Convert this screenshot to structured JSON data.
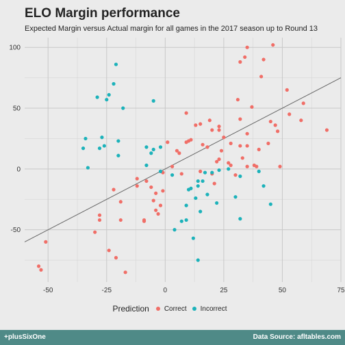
{
  "chart_data": {
    "type": "scatter",
    "title": "ELO Margin performance",
    "subtitle": "Expected Margin versus Actual margin for all games in the 2017 season up to Round 13",
    "xlim": [
      -60,
      75
    ],
    "ylim": [
      -93,
      108
    ],
    "x_ticks": [
      -50,
      -25,
      0,
      25,
      50,
      75
    ],
    "y_ticks": [
      -50,
      0,
      50,
      100
    ],
    "grid": true,
    "legend": {
      "title": "Prediction",
      "placement": "bottom",
      "entries": [
        "Correct",
        "Incorrect"
      ]
    },
    "trend_line": {
      "x": [
        -60,
        75
      ],
      "y": [
        -60,
        75
      ],
      "color": "#666666"
    },
    "series": [
      {
        "name": "Correct",
        "color": "#f06e67",
        "points": [
          [
            -54,
            -80
          ],
          [
            -53,
            -83
          ],
          [
            -51,
            -60
          ],
          [
            -30,
            -52
          ],
          [
            -28,
            -38
          ],
          [
            -28,
            -42
          ],
          [
            -24,
            -67
          ],
          [
            -22,
            -17
          ],
          [
            -21,
            -73
          ],
          [
            -19,
            -27
          ],
          [
            -19,
            -42
          ],
          [
            -17,
            -85
          ],
          [
            -12,
            -14
          ],
          [
            -12,
            -8
          ],
          [
            -9,
            -42
          ],
          [
            -9,
            -43
          ],
          [
            -8,
            -10
          ],
          [
            -6,
            -15
          ],
          [
            -5,
            -26
          ],
          [
            -4,
            -34
          ],
          [
            -4,
            -20
          ],
          [
            -3,
            -37
          ],
          [
            -2,
            -30
          ],
          [
            -1,
            -18
          ],
          [
            -1,
            -3
          ],
          [
            1,
            22
          ],
          [
            3,
            2
          ],
          [
            5,
            15
          ],
          [
            6,
            13
          ],
          [
            7,
            -4
          ],
          [
            9,
            46
          ],
          [
            9,
            22
          ],
          [
            10,
            23
          ],
          [
            11,
            24
          ],
          [
            13,
            36
          ],
          [
            15,
            37
          ],
          [
            15,
            -2
          ],
          [
            16,
            20
          ],
          [
            18,
            18
          ],
          [
            19,
            40
          ],
          [
            20,
            32
          ],
          [
            20,
            -4
          ],
          [
            21,
            -12
          ],
          [
            22,
            6
          ],
          [
            23,
            35
          ],
          [
            23,
            32
          ],
          [
            23,
            8
          ],
          [
            24,
            15
          ],
          [
            25,
            26
          ],
          [
            27,
            5
          ],
          [
            28,
            21
          ],
          [
            28,
            3
          ],
          [
            30,
            -5
          ],
          [
            31,
            57
          ],
          [
            32,
            88
          ],
          [
            32,
            41
          ],
          [
            32,
            19
          ],
          [
            33,
            9
          ],
          [
            34,
            92
          ],
          [
            35,
            100
          ],
          [
            35,
            29
          ],
          [
            35,
            19
          ],
          [
            35,
            2
          ],
          [
            37,
            51
          ],
          [
            38,
            3
          ],
          [
            39,
            2
          ],
          [
            40,
            16
          ],
          [
            41,
            76
          ],
          [
            42,
            90
          ],
          [
            44,
            21
          ],
          [
            45,
            39
          ],
          [
            46,
            102
          ],
          [
            47,
            36
          ],
          [
            48,
            31
          ],
          [
            49,
            2
          ],
          [
            52,
            65
          ],
          [
            53,
            45
          ],
          [
            58,
            40
          ],
          [
            59,
            54
          ],
          [
            69,
            32
          ]
        ]
      },
      {
        "name": "Incorrect",
        "color": "#1cb2ba",
        "points": [
          [
            -35,
            17
          ],
          [
            -34,
            25
          ],
          [
            -33,
            1
          ],
          [
            -29,
            59
          ],
          [
            -28,
            17
          ],
          [
            -27,
            26
          ],
          [
            -26,
            19
          ],
          [
            -25,
            57
          ],
          [
            -24,
            61
          ],
          [
            -22,
            70
          ],
          [
            -21,
            86
          ],
          [
            -20,
            23
          ],
          [
            -20,
            11
          ],
          [
            -18,
            50
          ],
          [
            -8,
            18
          ],
          [
            -8,
            3
          ],
          [
            -6,
            13
          ],
          [
            -5,
            56
          ],
          [
            -5,
            16
          ],
          [
            -2,
            18
          ],
          [
            -2,
            -2
          ],
          [
            3,
            -5
          ],
          [
            4,
            -50
          ],
          [
            7,
            -43
          ],
          [
            9,
            -42
          ],
          [
            9,
            -30
          ],
          [
            10,
            -17
          ],
          [
            11,
            -16
          ],
          [
            12,
            -57
          ],
          [
            13,
            -24
          ],
          [
            14,
            -75
          ],
          [
            14,
            -10
          ],
          [
            14,
            -14
          ],
          [
            15,
            -35
          ],
          [
            16,
            -10
          ],
          [
            17,
            -3
          ],
          [
            18,
            -21
          ],
          [
            20,
            -3
          ],
          [
            22,
            -28
          ],
          [
            23,
            -1
          ],
          [
            27,
            0
          ],
          [
            30,
            -23
          ],
          [
            32,
            -41
          ],
          [
            32,
            -6
          ],
          [
            40,
            -2
          ],
          [
            42,
            -14
          ],
          [
            45,
            -29
          ]
        ]
      }
    ]
  },
  "footer": {
    "left": "+plusSixOne",
    "right": "Data Source: afltables.com"
  }
}
